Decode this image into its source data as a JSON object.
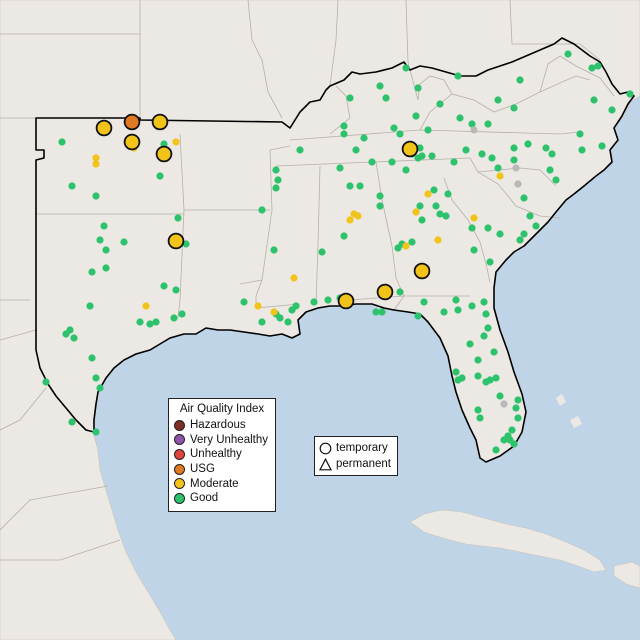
{
  "legend": {
    "title": "Air Quality Index",
    "items": [
      {
        "label": "Hazardous",
        "color": "#7e2e25"
      },
      {
        "label": "Very Unhealthy",
        "color": "#8e54a8"
      },
      {
        "label": "Unhealthy",
        "color": "#e0453a"
      },
      {
        "label": "USG",
        "color": "#e07a22"
      },
      {
        "label": "Moderate",
        "color": "#f2c318"
      },
      {
        "label": "Good",
        "color": "#2dc26c"
      }
    ]
  },
  "shape_legend": {
    "items": [
      {
        "label": "temporary",
        "shape": "circle-icon"
      },
      {
        "label": "permanent",
        "shape": "triangle-icon"
      }
    ]
  },
  "colors": {
    "water": "#bfd4e6",
    "land": "#ece8e3",
    "border": "#000000",
    "state_line": "#b5b0ab",
    "good": "#2dc26c",
    "moderate": "#f2c318",
    "usg": "#e07a22",
    "nodata": "#b8b8b8"
  }
}
